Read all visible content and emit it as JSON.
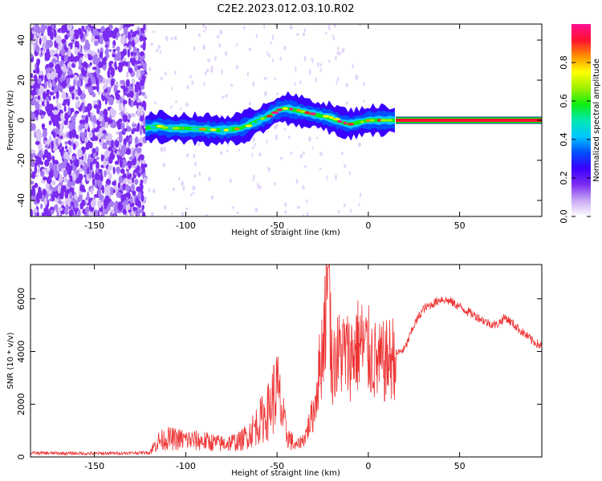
{
  "title": "C2E2.2023.012.03.10.R02",
  "colorbar": {
    "label": "Normalized spectral amplitude",
    "ticks": [
      "0.0",
      "0.2",
      "0.4",
      "0.6",
      "0.8"
    ],
    "range": [
      0,
      1
    ],
    "colors": [
      "#ffffff",
      "#c9a9f5",
      "#7b2bf0",
      "#3a00ff",
      "#0050ff",
      "#00c8ff",
      "#00e8b0",
      "#10ee10",
      "#a0f000",
      "#ffff00",
      "#ff9000",
      "#ff1030",
      "#ff1090"
    ]
  },
  "chart_data": [
    {
      "type": "heatmap",
      "xlabel": "Height of straight line (km)",
      "ylabel": "Frequency (Hz)",
      "xlim": [
        -185,
        95
      ],
      "ylim": [
        -48,
        48
      ],
      "xticks": [
        -150,
        -100,
        -50,
        0,
        50
      ],
      "yticks": [
        -40,
        -20,
        0,
        20,
        40
      ],
      "noise_region_x": [
        -185,
        -122
      ],
      "ridge": {
        "x": [
          -122,
          -115,
          -110,
          -100,
          -90,
          -80,
          -70,
          -65,
          -60,
          -55,
          -50,
          -45,
          -40,
          -35,
          -30,
          -25,
          -20,
          -15,
          -10,
          -5,
          0,
          5,
          10,
          95
        ],
        "y": [
          -4,
          -3,
          -4,
          -4,
          -4.5,
          -5,
          -4,
          -2,
          0,
          2,
          5,
          6,
          5,
          4,
          3,
          2,
          1,
          -1,
          -2,
          -1,
          0,
          0,
          0,
          0
        ]
      },
      "line_end_segment": {
        "x": [
          15,
          95
        ],
        "y": 0
      }
    },
    {
      "type": "line",
      "xlabel": "Height of straight line (km)",
      "ylabel": "SNR (10 * v/v)",
      "xlim": [
        -185,
        95
      ],
      "ylim": [
        0,
        7300
      ],
      "xticks": [
        -150,
        -100,
        -50,
        0,
        50
      ],
      "yticks": [
        0,
        2000,
        4000,
        6000
      ],
      "series": [
        {
          "color": "#ee3333",
          "x": [
            -185,
            -170,
            -150,
            -130,
            -120,
            -115,
            -110,
            -100,
            -90,
            -80,
            -70,
            -65,
            -60,
            -55,
            -50,
            -45,
            -40,
            -35,
            -30,
            -25,
            -22,
            -20,
            -15,
            -10,
            -5,
            0,
            5,
            10,
            15,
            20,
            25,
            30,
            35,
            40,
            45,
            50,
            55,
            60,
            65,
            70,
            75,
            80,
            85,
            90,
            95
          ],
          "values": [
            150,
            140,
            130,
            150,
            170,
            600,
            700,
            650,
            600,
            500,
            600,
            900,
            1300,
            1700,
            2600,
            900,
            400,
            700,
            1700,
            4200,
            7200,
            3500,
            4000,
            3800,
            4300,
            4000,
            3500,
            3600,
            3900,
            4100,
            5000,
            5600,
            5800,
            6000,
            5900,
            5700,
            5500,
            5300,
            5100,
            5000,
            5300,
            5000,
            4700,
            4400,
            4200
          ]
        }
      ]
    }
  ]
}
